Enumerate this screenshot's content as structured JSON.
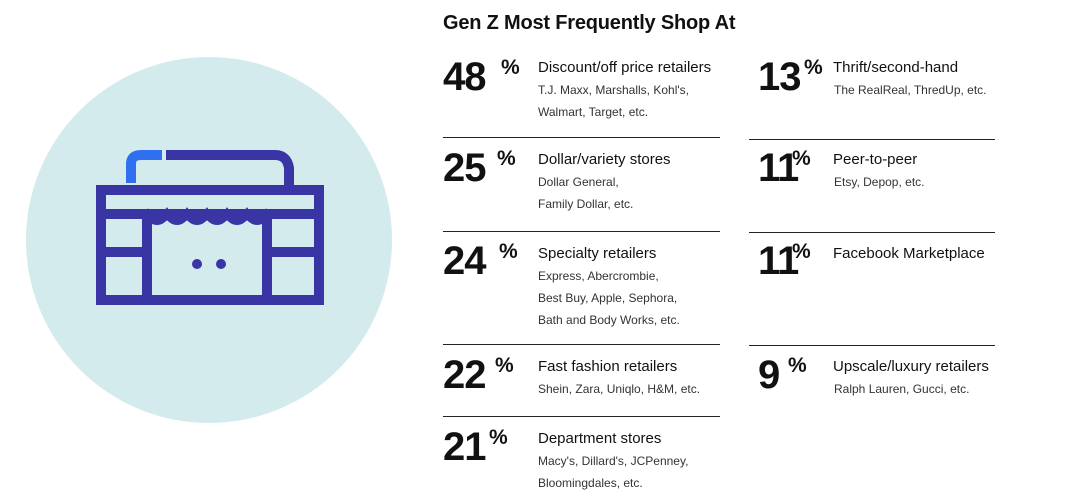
{
  "title": "Gen Z Most Frequently Shop At",
  "percent_symbol": "%",
  "colors": {
    "circle": "#d4ebee",
    "icon_main": "#3a35a5",
    "icon_accent": "#2f6ff0"
  },
  "icon": "storefront-icon",
  "left_column": [
    {
      "value": "48",
      "label": "Discount/off price retailers",
      "lines": [
        "T.J. Maxx, Marshalls, Kohl's,",
        "Walmart, Target, etc."
      ]
    },
    {
      "value": "25",
      "label": "Dollar/variety stores",
      "lines": [
        "Dollar General,",
        "Family Dollar, etc."
      ]
    },
    {
      "value": "24",
      "label": "Specialty retailers",
      "lines": [
        "Express, Abercrombie,",
        "Best Buy, Apple, Sephora,",
        "Bath and Body Works, etc."
      ]
    },
    {
      "value": "22",
      "label": "Fast fashion retailers",
      "lines": [
        "Shein, Zara, Uniqlo, H&M, etc."
      ]
    },
    {
      "value": "21",
      "label": "Department stores",
      "lines": [
        "Macy's, Dillard's, JCPenney,",
        "Bloomingdales, etc."
      ]
    }
  ],
  "right_column": [
    {
      "value": "13",
      "label": "Thrift/second-hand",
      "lines": [
        "The RealReal, ThredUp, etc."
      ]
    },
    {
      "value": "11",
      "label": "Peer-to-peer",
      "lines": [
        "Etsy, Depop, etc."
      ]
    },
    {
      "value": "11",
      "label": "Facebook Marketplace",
      "lines": []
    },
    {
      "value": "9",
      "label": "Upscale/luxury retailers",
      "lines": [
        "Ralph Lauren, Gucci, etc."
      ]
    }
  ]
}
